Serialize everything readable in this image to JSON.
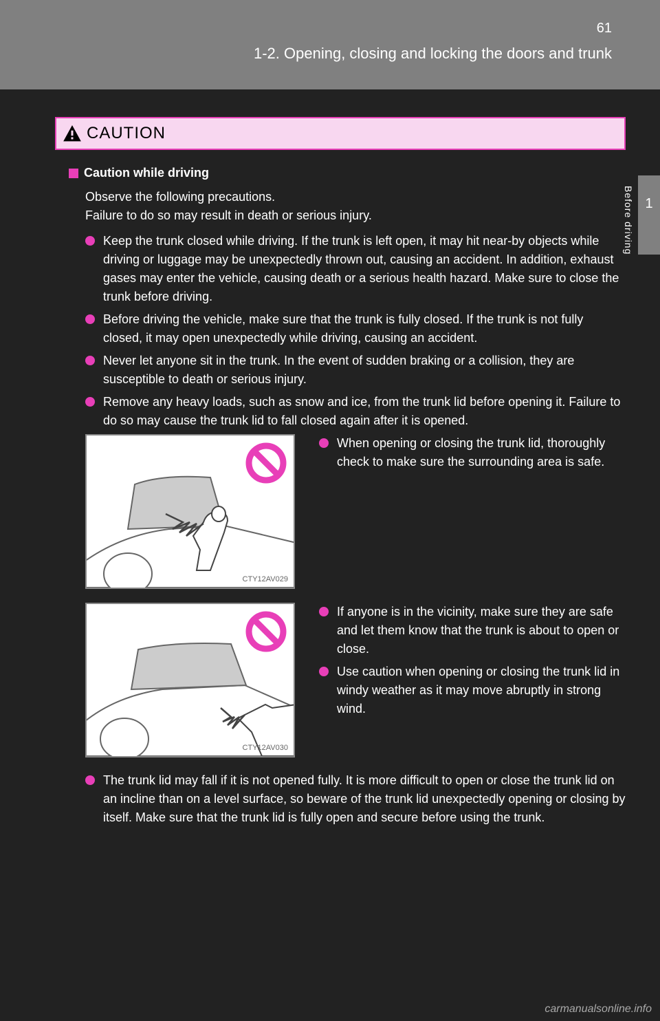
{
  "page_number": "61",
  "header_section": "1-2. Opening, closing and locking the doors and trunk",
  "side_tab_num": "1",
  "side_tab_label": "Before driving",
  "caution_title": "CAUTION",
  "subsection_title": "Caution while driving",
  "intro": "Observe the following precautions.\nFailure to do so may result in death or serious injury.",
  "bullets_top": [
    "Keep the trunk closed while driving.\nIf the trunk is left open, it may hit near-by objects while driving or luggage may be unexpectedly thrown out, causing an accident.\nIn addition, exhaust gases may enter the vehicle, causing death or a serious health hazard. Make sure to close the trunk before driving.",
    "Before driving the vehicle, make sure that the trunk is fully closed. If the trunk is not fully closed, it may open unexpectedly while driving, causing an accident.",
    "Never let anyone sit in the trunk. In the event of sudden braking or a collision, they are susceptible to death or serious injury.",
    "Remove any heavy loads, such as snow and ice, from the trunk lid before opening it. Failure to do so may cause the trunk lid to fall closed again after it is opened."
  ],
  "figure1": {
    "label": "CTY12AV029",
    "side_bullets": [
      "When opening or closing the trunk lid, thoroughly check to make sure the surrounding area is safe."
    ],
    "prohibit_color": "#e83fb8"
  },
  "figure2": {
    "label": "CTY12AV030",
    "side_bullets": [
      "If anyone is in the vicinity, make sure they are safe and let them know that the trunk is about to open or close.",
      "Use caution when opening or closing the trunk lid in windy weather as it may move abruptly in strong wind."
    ],
    "prohibit_color": "#e83fb8"
  },
  "bottom_bullet": "The trunk lid may fall if it is not opened fully. It is more difficult to open or close the trunk lid on an incline than on a level surface, so beware of the trunk lid unexpectedly opening or closing by itself. Make sure that the trunk lid is fully open and secure before using the trunk.",
  "watermark": "carmanualsonline.info",
  "colors": {
    "header_bg": "#808080",
    "accent": "#e83fb8",
    "caution_bg": "#f8d7f0",
    "page_bg": "#222222"
  }
}
